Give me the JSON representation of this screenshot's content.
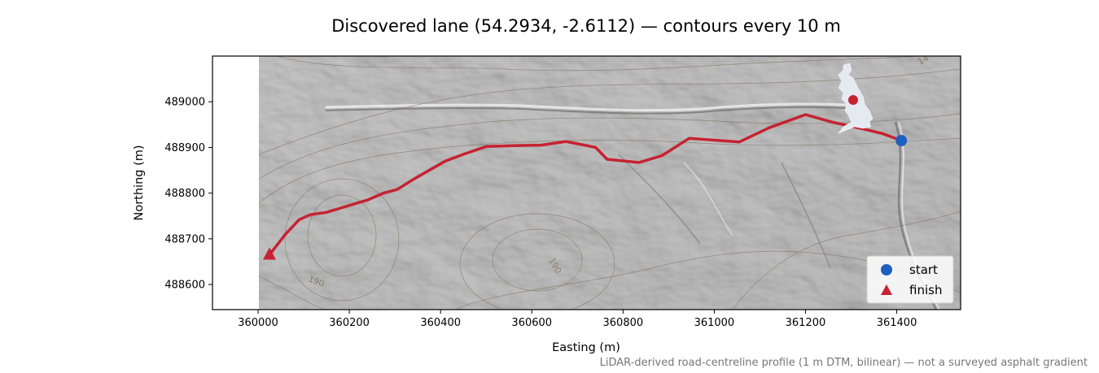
{
  "chart_data": {
    "type": "line",
    "title": "Discovered lane (54.2934, -2.6112) — contours every 10 m",
    "xlabel": "Easting (m)",
    "ylabel": "Northing (m)",
    "xlim": [
      359900,
      361540
    ],
    "ylim": [
      488545,
      489000.5
    ],
    "ylim_top": 489100,
    "xticks": [
      360000,
      360200,
      360400,
      360600,
      360800,
      361000,
      361200,
      361400
    ],
    "yticks": [
      488600,
      488700,
      488800,
      488900,
      489000
    ],
    "grid": false,
    "legend_position": "lower-right",
    "background": "hillshade-relief",
    "route_color": "#c62232",
    "start_color": "#1f5fbf",
    "finish_color": "#c62232",
    "route": [
      {
        "x": 360025,
        "y": 488665
      },
      {
        "x": 360060,
        "y": 488710
      },
      {
        "x": 360090,
        "y": 488742
      },
      {
        "x": 360115,
        "y": 488753
      },
      {
        "x": 360150,
        "y": 488758
      },
      {
        "x": 360200,
        "y": 488773
      },
      {
        "x": 360240,
        "y": 488785
      },
      {
        "x": 360275,
        "y": 488800
      },
      {
        "x": 360305,
        "y": 488808
      },
      {
        "x": 360340,
        "y": 488830
      },
      {
        "x": 360410,
        "y": 488870
      },
      {
        "x": 360450,
        "y": 488885
      },
      {
        "x": 360500,
        "y": 488902
      },
      {
        "x": 360560,
        "y": 488904
      },
      {
        "x": 360620,
        "y": 488905
      },
      {
        "x": 360675,
        "y": 488913
      },
      {
        "x": 360740,
        "y": 488900
      },
      {
        "x": 360765,
        "y": 488874
      },
      {
        "x": 360835,
        "y": 488867
      },
      {
        "x": 360885,
        "y": 488882
      },
      {
        "x": 360945,
        "y": 488920
      },
      {
        "x": 361055,
        "y": 488912
      },
      {
        "x": 361120,
        "y": 488943
      },
      {
        "x": 361200,
        "y": 488972
      },
      {
        "x": 361260,
        "y": 488955
      },
      {
        "x": 361320,
        "y": 488942
      },
      {
        "x": 361370,
        "y": 488930
      },
      {
        "x": 361410,
        "y": 488915
      }
    ],
    "start": {
      "x": 361410,
      "y": 488915
    },
    "finish": {
      "x": 360025,
      "y": 488665
    },
    "legend": [
      {
        "label": "start",
        "marker": "circle"
      },
      {
        "label": "finish",
        "marker": "triangle"
      }
    ],
    "contour_labels": [
      "190",
      "190",
      "14"
    ],
    "inset": {
      "type": "locator-map",
      "icon": "great-britain-outline",
      "land_color": "#e4e9f2",
      "marker_color": "#c62232"
    }
  },
  "footnote": "LiDAR-derived road-centreline profile (1 m DTM, bilinear) — not a surveyed asphalt gradient"
}
